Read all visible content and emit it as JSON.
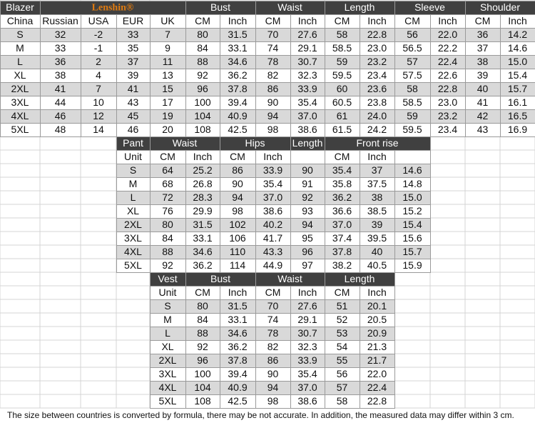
{
  "blazer": {
    "label": "Blazer",
    "brand": "Lenshin®",
    "groups": [
      "Bust",
      "Waist",
      "Length",
      "Sleeve",
      "Shoulder"
    ],
    "columns": [
      "China",
      "Russian",
      "USA",
      "EUR",
      "UK",
      "CM",
      "Inch",
      "CM",
      "Inch",
      "CM",
      "Inch",
      "CM",
      "Inch",
      "CM",
      "Inch"
    ],
    "rows": [
      [
        "S",
        "32",
        "-2",
        "33",
        "7",
        "80",
        "31.5",
        "70",
        "27.6",
        "58",
        "22.8",
        "56",
        "22.0",
        "36",
        "14.2"
      ],
      [
        "M",
        "33",
        "-1",
        "35",
        "9",
        "84",
        "33.1",
        "74",
        "29.1",
        "58.5",
        "23.0",
        "56.5",
        "22.2",
        "37",
        "14.6"
      ],
      [
        "L",
        "36",
        "2",
        "37",
        "11",
        "88",
        "34.6",
        "78",
        "30.7",
        "59",
        "23.2",
        "57",
        "22.4",
        "38",
        "15.0"
      ],
      [
        "XL",
        "38",
        "4",
        "39",
        "13",
        "92",
        "36.2",
        "82",
        "32.3",
        "59.5",
        "23.4",
        "57.5",
        "22.6",
        "39",
        "15.4"
      ],
      [
        "2XL",
        "41",
        "7",
        "41",
        "15",
        "96",
        "37.8",
        "86",
        "33.9",
        "60",
        "23.6",
        "58",
        "22.8",
        "40",
        "15.7"
      ],
      [
        "3XL",
        "44",
        "10",
        "43",
        "17",
        "100",
        "39.4",
        "90",
        "35.4",
        "60.5",
        "23.8",
        "58.5",
        "23.0",
        "41",
        "16.1"
      ],
      [
        "4XL",
        "46",
        "12",
        "45",
        "19",
        "104",
        "40.9",
        "94",
        "37.0",
        "61",
        "24.0",
        "59",
        "23.2",
        "42",
        "16.5"
      ],
      [
        "5XL",
        "48",
        "14",
        "46",
        "20",
        "108",
        "42.5",
        "98",
        "38.6",
        "61.5",
        "24.2",
        "59.5",
        "23.4",
        "43",
        "16.9"
      ]
    ]
  },
  "pant": {
    "headers": [
      "Pant",
      "Waist",
      "Hips",
      "Length",
      "Front rise"
    ],
    "columns": [
      "Unit",
      "CM",
      "Inch",
      "CM",
      "Inch",
      null,
      "CM",
      "Inch",
      null
    ],
    "rows": [
      [
        "S",
        "64",
        "25.2",
        "86",
        "33.9",
        "90",
        "35.4",
        "37",
        "14.6"
      ],
      [
        "M",
        "68",
        "26.8",
        "90",
        "35.4",
        "91",
        "35.8",
        "37.5",
        "14.8"
      ],
      [
        "L",
        "72",
        "28.3",
        "94",
        "37.0",
        "92",
        "36.2",
        "38",
        "15.0"
      ],
      [
        "XL",
        "76",
        "29.9",
        "98",
        "38.6",
        "93",
        "36.6",
        "38.5",
        "15.2"
      ],
      [
        "2XL",
        "80",
        "31.5",
        "102",
        "40.2",
        "94",
        "37.0",
        "39",
        "15.4"
      ],
      [
        "3XL",
        "84",
        "33.1",
        "106",
        "41.7",
        "95",
        "37.4",
        "39.5",
        "15.6"
      ],
      [
        "4XL",
        "88",
        "34.6",
        "110",
        "43.3",
        "96",
        "37.8",
        "40",
        "15.7"
      ],
      [
        "5XL",
        "92",
        "36.2",
        "114",
        "44.9",
        "97",
        "38.2",
        "40.5",
        "15.9"
      ]
    ]
  },
  "vest": {
    "headers": [
      "Vest",
      "Bust",
      "Waist",
      "Length"
    ],
    "columns": [
      "Unit",
      "CM",
      "Inch",
      "CM",
      "Inch",
      "CM",
      "Inch"
    ],
    "rows": [
      [
        "S",
        "80",
        "31.5",
        "70",
        "27.6",
        "51",
        "20.1"
      ],
      [
        "M",
        "84",
        "33.1",
        "74",
        "29.1",
        "52",
        "20.5"
      ],
      [
        "L",
        "88",
        "34.6",
        "78",
        "30.7",
        "53",
        "20.9"
      ],
      [
        "XL",
        "92",
        "36.2",
        "82",
        "32.3",
        "54",
        "21.3"
      ],
      [
        "2XL",
        "96",
        "37.8",
        "86",
        "33.9",
        "55",
        "21.7"
      ],
      [
        "3XL",
        "100",
        "39.4",
        "90",
        "35.4",
        "56",
        "22.0"
      ],
      [
        "4XL",
        "104",
        "40.9",
        "94",
        "37.0",
        "57",
        "22.4"
      ],
      [
        "5XL",
        "108",
        "42.5",
        "98",
        "38.6",
        "58",
        "22.8"
      ]
    ]
  },
  "footer": {
    "note": "The size between countries is converted by formula, there may be not accurate. In addition, the measured data may differ within 3 cm."
  }
}
